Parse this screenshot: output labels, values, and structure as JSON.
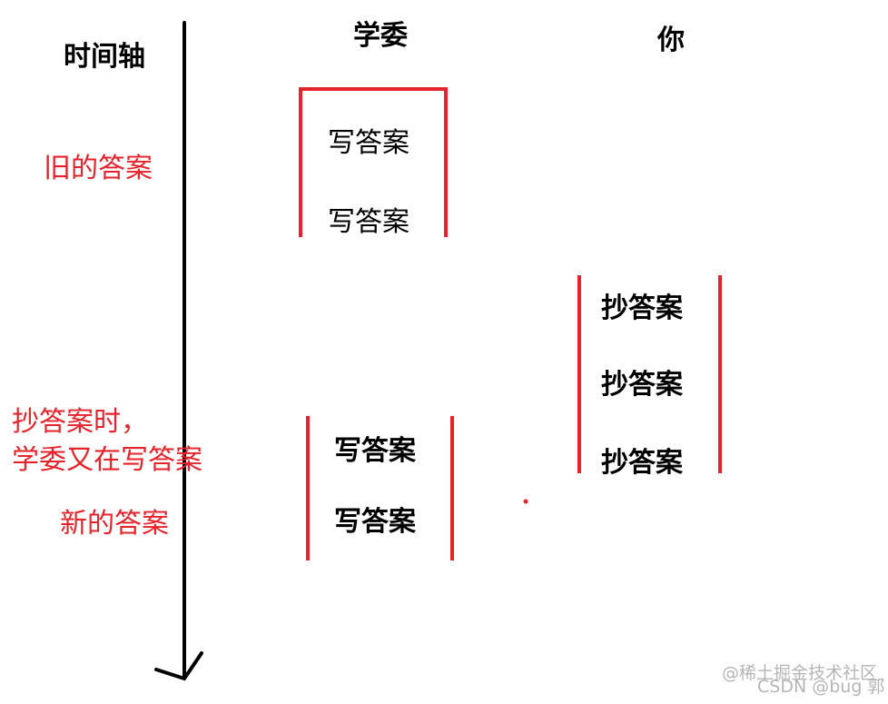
{
  "axis_label": "时间轴",
  "columns": {
    "monitor": "学委",
    "you": "你"
  },
  "boxes": {
    "old": [
      "写答案",
      "写答案"
    ],
    "copy": [
      "抄答案",
      "抄答案",
      "抄答案"
    ],
    "new": [
      "写答案",
      "写答案"
    ]
  },
  "annotations": {
    "old_answer": "旧的答案",
    "copying_line1": "抄答案时，",
    "copying_line2": "学委又在写答案",
    "new_answer": "新的答案"
  },
  "colors": {
    "accent": "#e6222b",
    "axis": "#000000"
  },
  "watermark": {
    "line1": "@稀土掘金技术社区",
    "line2": "CSDN @bug 郭"
  }
}
